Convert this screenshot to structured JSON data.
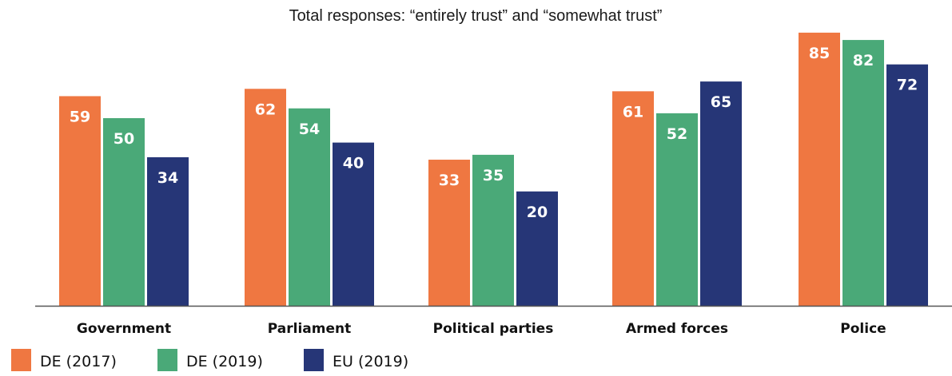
{
  "chart_data": {
    "type": "bar",
    "title": "Total responses: “entirely trust” and “somewhat trust”",
    "xlabel": "",
    "ylabel": "",
    "categories": [
      "Government",
      "Parliament",
      "Political parties",
      "Armed forces",
      "Police"
    ],
    "series": [
      {
        "name": "DE (2017)",
        "color": "#ef7741",
        "values": [
          59,
          62,
          33,
          61,
          85
        ]
      },
      {
        "name": "DE (2019)",
        "color": "#4aa978",
        "values": [
          50,
          54,
          35,
          52,
          82
        ]
      },
      {
        "name": "EU (2019)",
        "color": "#263677",
        "values": [
          34,
          40,
          20,
          65,
          72
        ]
      }
    ],
    "ylim": [
      0,
      100
    ],
    "grid": false,
    "legend_position": "bottom-left",
    "data_labels": true
  }
}
